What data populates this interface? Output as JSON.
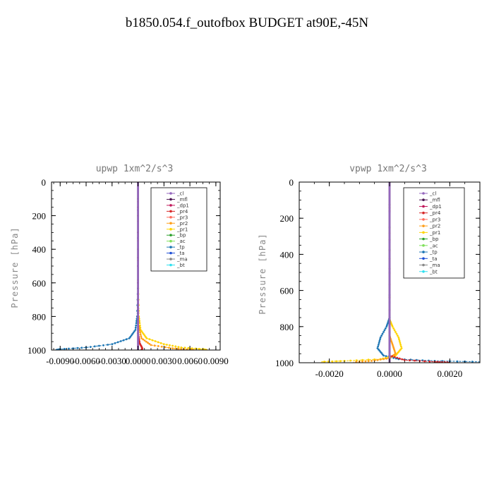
{
  "title": "b1850.054.f_outofbox  BUDGET at90E,-45N",
  "legend_labels": [
    "_cl",
    "_mfl",
    "_dp1",
    "_pr4",
    "_pr3",
    "_pr2",
    "_pr1",
    "_bp",
    "_ac",
    "_tp",
    "_ta",
    "_ma",
    "_bt"
  ],
  "colors": {
    "_cl": "#9467bd",
    "_mfl": "#4b1552",
    "_dp1": "#c2185b",
    "_pr4": "#d62728",
    "_pr3": "#ff6b5b",
    "_pr2": "#ff9f1c",
    "_pr1": "#ffd400",
    "_bp": "#2ca02c",
    "_ac": "#7fe05a",
    "_tp": "#1f77b4",
    "_ta": "#1f4fd6",
    "_ma": "#888888",
    "_bt": "#2fe0f0"
  },
  "chart_data": [
    {
      "type": "line",
      "title": "upwp   1xm^2/s^3",
      "ylabel": "Pressure  [hPa]",
      "xlabel": "",
      "xlim": [
        -0.01,
        0.0095
      ],
      "ylim": [
        0,
        1000
      ],
      "y_inverted": true,
      "xticks": [
        -0.009,
        -0.006,
        -0.003,
        0.0,
        0.003,
        0.006,
        0.009
      ],
      "xtick_labels": [
        "-0.0090",
        "-0.0060",
        "-0.0030",
        "0.0000",
        "0.0030",
        "0.0060",
        "0.0090"
      ],
      "yticks": [
        0,
        200,
        400,
        600,
        800,
        1000
      ],
      "ytick_labels": [
        "0",
        "200",
        "400",
        "600",
        "800",
        "1000"
      ],
      "legend_position": "top-right",
      "series": [
        {
          "name": "_tp",
          "points": [
            [
              0,
              0
            ],
            [
              0,
              600
            ],
            [
              -0.0001,
              800
            ],
            [
              -0.0003,
              880
            ],
            [
              -0.001,
              930
            ],
            [
              -0.003,
              965
            ],
            [
              -0.006,
              985
            ],
            [
              -0.009,
              995
            ],
            [
              -0.0095,
              1000
            ]
          ]
        },
        {
          "name": "_pr1",
          "points": [
            [
              0,
              0
            ],
            [
              0,
              600
            ],
            [
              0.0001,
              800
            ],
            [
              0.0003,
              880
            ],
            [
              0.001,
              930
            ],
            [
              0.003,
              965
            ],
            [
              0.005,
              985
            ],
            [
              0.0075,
              995
            ],
            [
              0.008,
              1000
            ]
          ]
        },
        {
          "name": "_pr2",
          "points": [
            [
              0,
              0
            ],
            [
              0,
              700
            ],
            [
              0.0001,
              860
            ],
            [
              0.0004,
              930
            ],
            [
              0.0015,
              970
            ],
            [
              0.004,
              990
            ],
            [
              0.006,
              998
            ],
            [
              0.0065,
              1000
            ]
          ]
        },
        {
          "name": "_pr4",
          "points": [
            [
              0,
              0
            ],
            [
              0,
              900
            ],
            [
              0.0002,
              960
            ],
            [
              0.0005,
              990
            ],
            [
              0.0004,
              1000
            ]
          ]
        },
        {
          "name": "_mfl",
          "points": [
            [
              0,
              0
            ],
            [
              0,
              1000
            ]
          ]
        },
        {
          "name": "_cl",
          "points": [
            [
              0,
              0
            ],
            [
              0,
              1000
            ]
          ]
        }
      ]
    },
    {
      "type": "line",
      "title": "vpwp   1xm^2/s^3",
      "ylabel": "Pressure  [hPa]",
      "xlabel": "",
      "xlim": [
        -0.003,
        0.003
      ],
      "ylim": [
        0,
        1000
      ],
      "y_inverted": true,
      "xticks": [
        -0.002,
        0.0,
        0.002
      ],
      "xtick_labels": [
        "-0.0020",
        "0.0000",
        "0.0020"
      ],
      "yticks": [
        0,
        200,
        400,
        600,
        800,
        1000
      ],
      "ytick_labels": [
        "0",
        "200",
        "400",
        "600",
        "800",
        "1000"
      ],
      "legend_position": "top-right",
      "series": [
        {
          "name": "_tp",
          "points": [
            [
              0,
              0
            ],
            [
              0,
              750
            ],
            [
              -0.0001,
              800
            ],
            [
              -0.0003,
              860
            ],
            [
              -0.0004,
              920
            ],
            [
              -0.0002,
              960
            ],
            [
              0.0003,
              980
            ],
            [
              0.0015,
              990
            ],
            [
              0.003,
              995
            ]
          ]
        },
        {
          "name": "_pr1",
          "points": [
            [
              0,
              0
            ],
            [
              0,
              760
            ],
            [
              0.0001,
              800
            ],
            [
              0.0003,
              860
            ],
            [
              0.0004,
              920
            ],
            [
              0.0002,
              960
            ],
            [
              -0.0003,
              980
            ],
            [
              -0.0015,
              990
            ],
            [
              -0.0023,
              995
            ]
          ]
        },
        {
          "name": "_pr2",
          "points": [
            [
              0,
              0
            ],
            [
              0,
              850
            ],
            [
              0.0001,
              900
            ],
            [
              0.0002,
              950
            ],
            [
              0,
              975
            ],
            [
              -0.0006,
              990
            ],
            [
              -0.0012,
              996
            ]
          ]
        },
        {
          "name": "_pr4",
          "points": [
            [
              0,
              0
            ],
            [
              0,
              960
            ],
            [
              0.0005,
              985
            ],
            [
              0.0015,
              995
            ],
            [
              0.002,
              998
            ]
          ]
        },
        {
          "name": "_mfl",
          "points": [
            [
              0,
              0
            ],
            [
              0,
              1000
            ]
          ]
        },
        {
          "name": "_cl",
          "points": [
            [
              0,
              0
            ],
            [
              0,
              1000
            ]
          ]
        }
      ]
    }
  ]
}
